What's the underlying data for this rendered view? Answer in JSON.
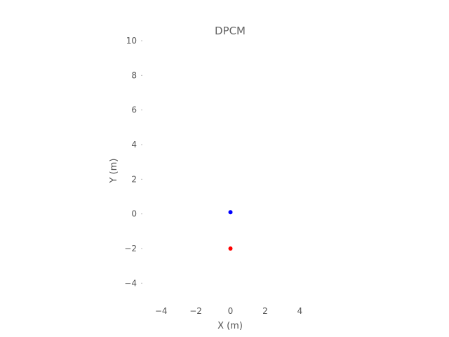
{
  "chart_data": {
    "type": "scatter",
    "title": "DPCM",
    "xlabel": "X (m)",
    "ylabel": "Y (m)",
    "xlim": [
      -5,
      5
    ],
    "ylim": [
      -5,
      10
    ],
    "xticks": [
      -4,
      -2,
      0,
      2,
      4
    ],
    "yticks": [
      -4,
      -2,
      0,
      2,
      4,
      6,
      8,
      10
    ],
    "grid": false,
    "points": [
      {
        "x": 0,
        "y": 0.1,
        "color": "#0000ff"
      },
      {
        "x": 0,
        "y": -2.0,
        "color": "#ff0000"
      }
    ]
  }
}
